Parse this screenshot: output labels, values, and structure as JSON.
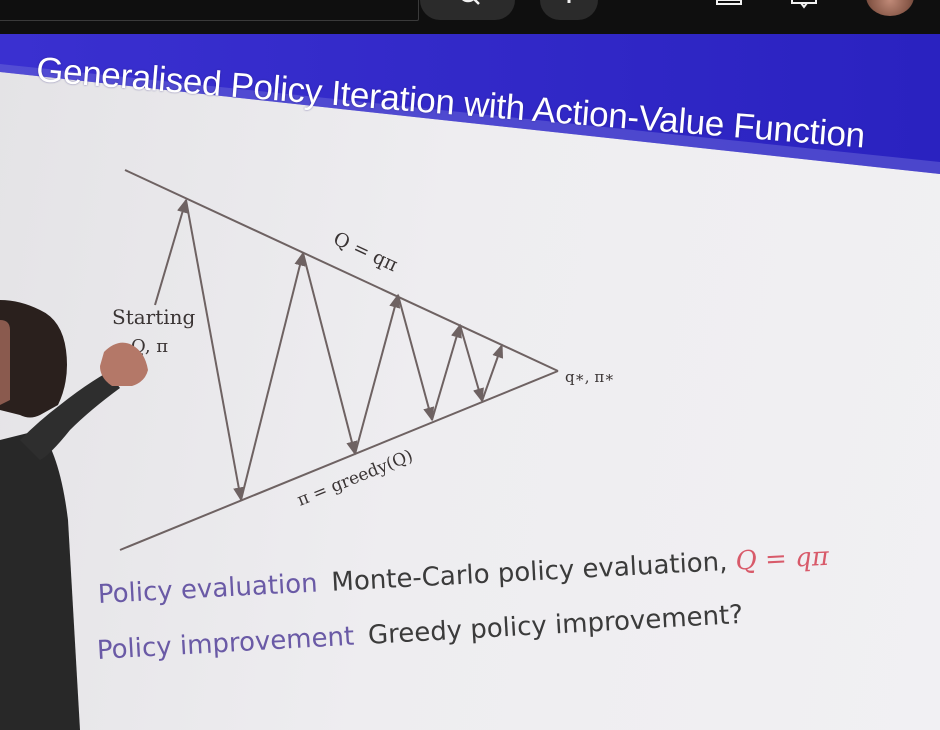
{
  "slide": {
    "title": "Generalised Policy Iteration with Action-Value Function",
    "diagram": {
      "top_label": "Q = qπ",
      "bottom_label": "π = greedy(Q)",
      "apex_label": "q∗, π∗",
      "start_label_line1": "Starting",
      "start_label_line2": "Q, π"
    },
    "rows": [
      {
        "term": "Policy evaluation",
        "description": "Monte-Carlo policy evaluation,",
        "highlight": "Q = qπ"
      },
      {
        "term": "Policy improvement",
        "description": "Greedy policy improvement?"
      }
    ]
  },
  "toolbar": {
    "icons": [
      "search-icon",
      "add-icon",
      "cast-icon",
      "notifications-icon",
      "avatar"
    ]
  },
  "colors": {
    "title_band": "#2f26c8",
    "term_text": "#6a5aa6",
    "highlight_text": "#d85a6a",
    "topbar": "#0f0f0f"
  }
}
